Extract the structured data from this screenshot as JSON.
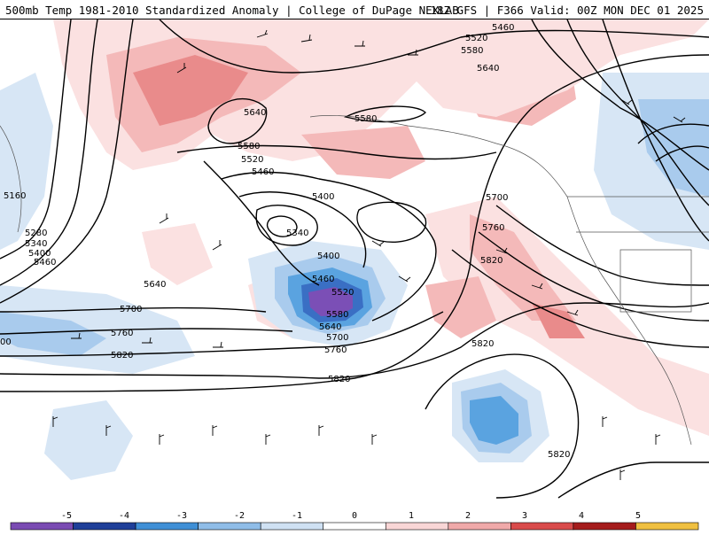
{
  "header": {
    "title_left": "500mb Temp 1981-2010 Standardized Anomaly | College of DuPage NEXLAB",
    "title_right": "18Z GFS | F366 Valid: 00Z MON DEC 01 2025"
  },
  "contour_labels": [
    "5460",
    "5520",
    "5580",
    "5640",
    "5640",
    "5580",
    "5580",
    "5520",
    "5460",
    "5400",
    "5340",
    "5160",
    "5280",
    "5340",
    "5400",
    "5460",
    "5640",
    "5700",
    "5760",
    "5820",
    "5400",
    "5460",
    "5520",
    "5580",
    "5640",
    "5700",
    "5760",
    "5820",
    "5700",
    "5760",
    "5820",
    "5820",
    "5820",
    "00"
  ],
  "legend": {
    "ticks": [
      "-5",
      "-4",
      "-3",
      "-2",
      "-1",
      "0",
      "1",
      "2",
      "3",
      "4",
      "5"
    ],
    "colors": [
      "#7a4bb3",
      "#1f3f99",
      "#3f8fd6",
      "#8fbde8",
      "#cfe1f3",
      "#ffffff",
      "#f9d6d6",
      "#f0a9a9",
      "#d94b4b",
      "#a51c1c",
      "#f0c040"
    ]
  },
  "shading_colors": {
    "neg1": "#d7e6f5",
    "neg2": "#a9cbed",
    "neg3": "#5aa3e0",
    "neg4": "#3a6fc4",
    "neg5": "#7b4fb6",
    "pos1": "#fbe1e1",
    "pos2": "#f4b9b9",
    "pos3": "#e98b8b"
  }
}
